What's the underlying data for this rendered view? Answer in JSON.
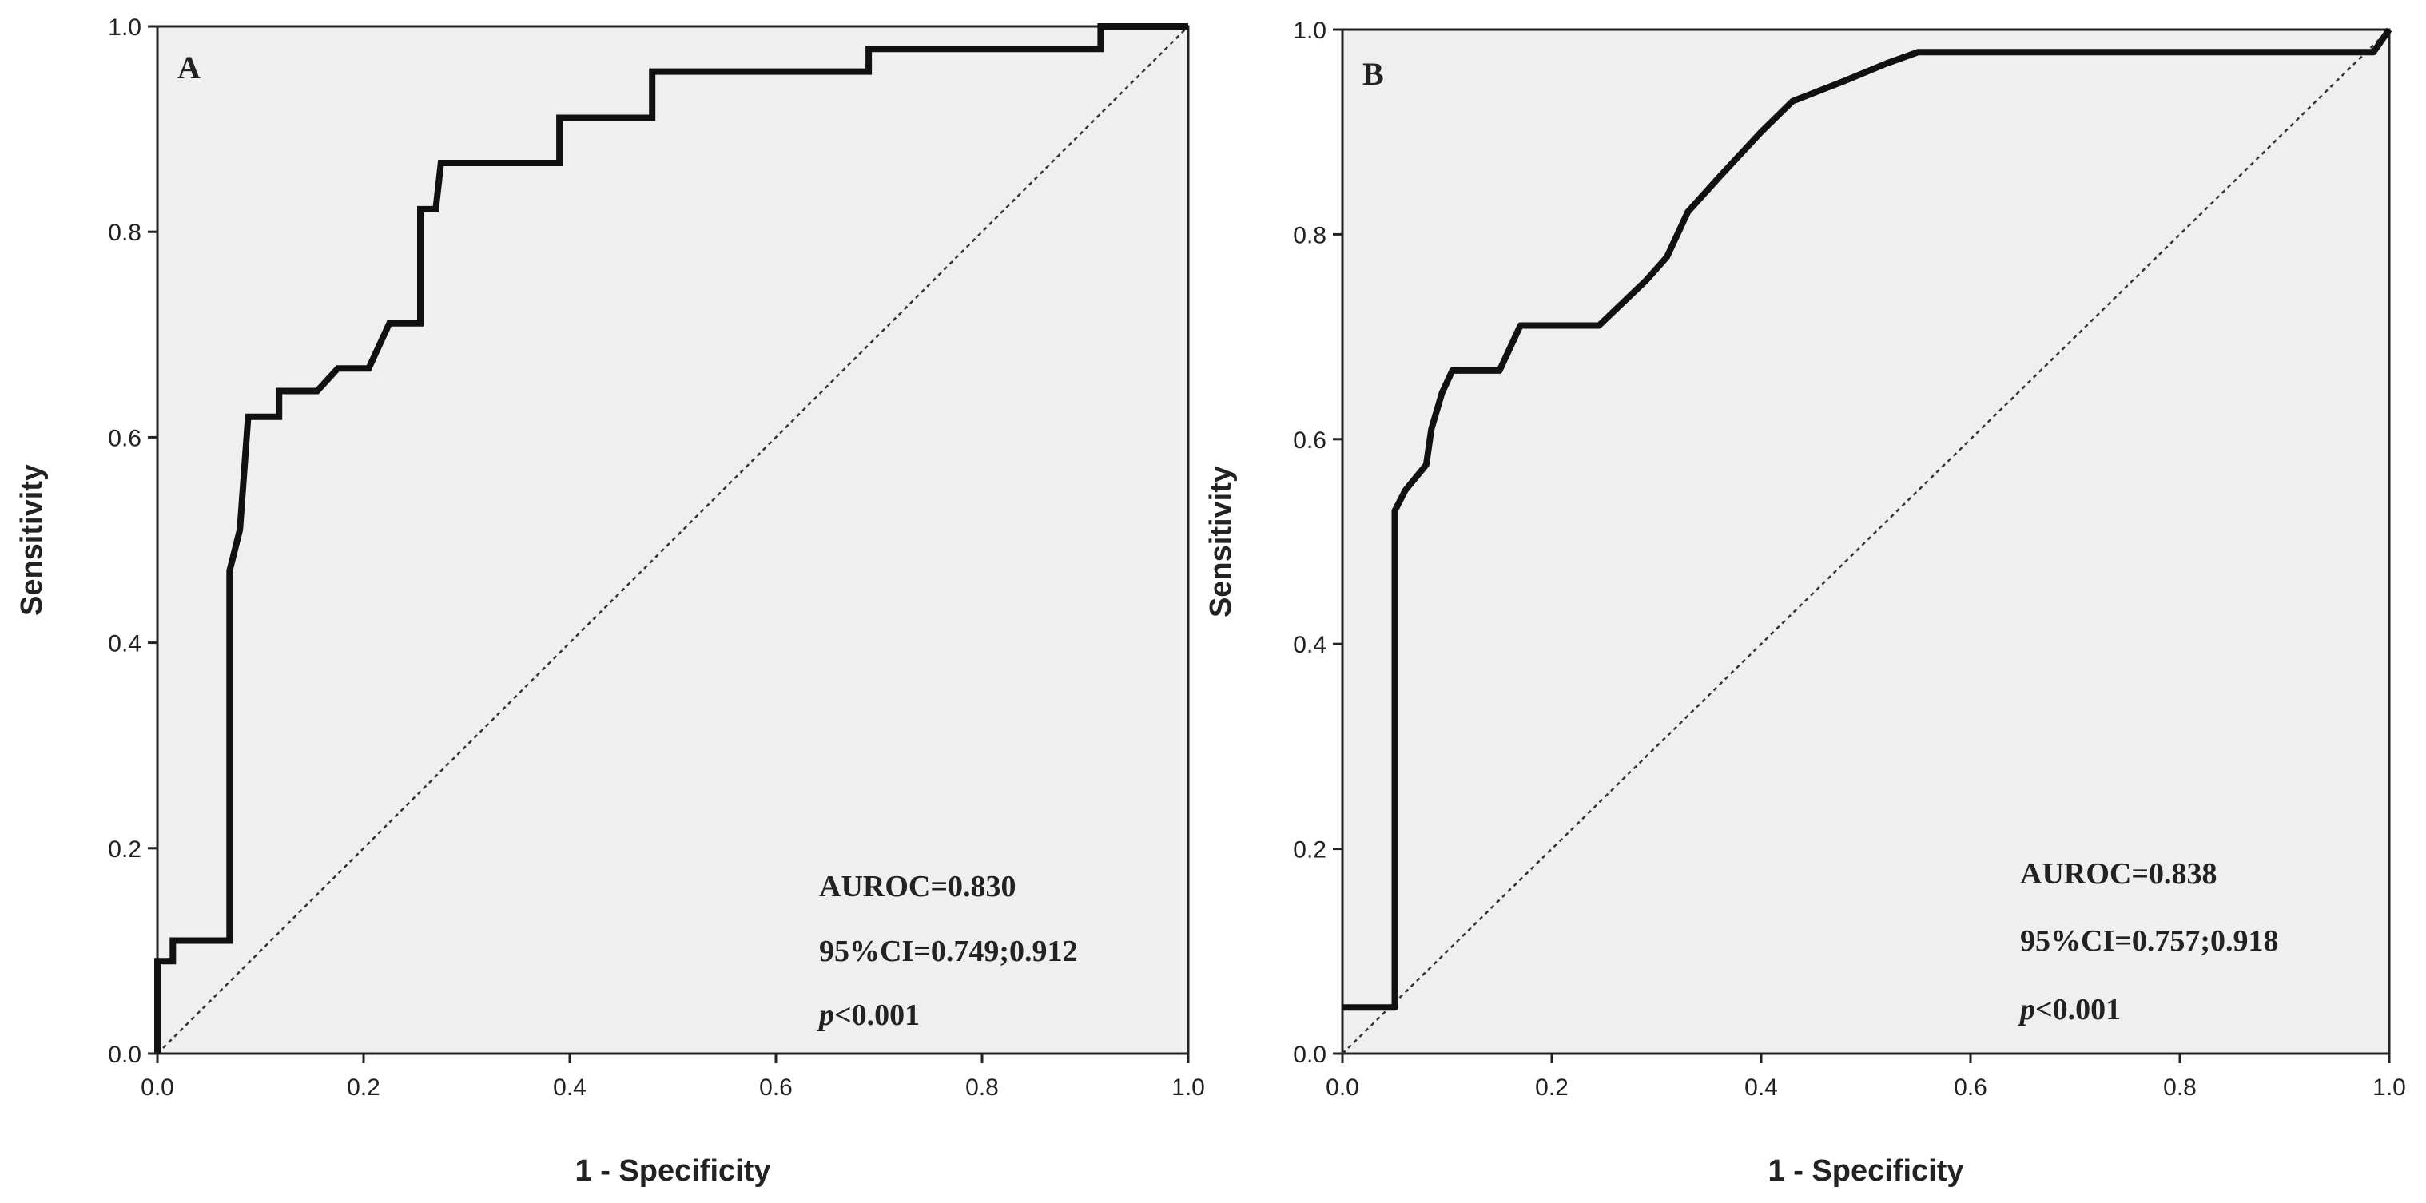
{
  "chart_data": [
    {
      "type": "line",
      "panel_label": "A",
      "xlabel": "1 - Specificity",
      "ylabel": "Sensitivity",
      "xlim": [
        0,
        1
      ],
      "ylim": [
        0,
        1
      ],
      "xticks": [
        "0.0",
        "0.2",
        "0.4",
        "0.6",
        "0.8",
        "1.0"
      ],
      "yticks": [
        "0.0",
        "0.2",
        "0.4",
        "0.6",
        "0.8",
        "1.0"
      ],
      "grid": false,
      "colors": {
        "plot_bg": "#efefef",
        "curve": "#111111",
        "reference": "#333333"
      },
      "series": [
        {
          "points": [
            [
              0,
              0
            ],
            [
              0,
              0.09
            ],
            [
              0.015,
              0.09
            ],
            [
              0.015,
              0.11
            ],
            [
              0.07,
              0.11
            ],
            [
              0.07,
              0.47
            ],
            [
              0.08,
              0.51
            ],
            [
              0.088,
              0.62
            ],
            [
              0.118,
              0.62
            ],
            [
              0.118,
              0.645
            ],
            [
              0.155,
              0.645
            ],
            [
              0.175,
              0.667
            ],
            [
              0.205,
              0.667
            ],
            [
              0.225,
              0.711
            ],
            [
              0.255,
              0.711
            ],
            [
              0.255,
              0.822
            ],
            [
              0.27,
              0.822
            ],
            [
              0.275,
              0.867
            ],
            [
              0.39,
              0.867
            ],
            [
              0.39,
              0.911
            ],
            [
              0.48,
              0.911
            ],
            [
              0.48,
              0.956
            ],
            [
              0.69,
              0.956
            ],
            [
              0.69,
              0.978
            ],
            [
              0.915,
              0.978
            ],
            [
              0.915,
              1.0
            ],
            [
              1.0,
              1.0
            ]
          ]
        },
        {
          "points": [
            [
              0,
              0
            ],
            [
              1,
              1
            ]
          ]
        }
      ],
      "annotations": {
        "auroc": "AUROC=0.830",
        "ci": "95%CI=0.749;0.912",
        "p_symbol": "p",
        "p_rest": "<0.001"
      }
    },
    {
      "type": "line",
      "panel_label": "B",
      "xlabel": "1 - Specificity",
      "ylabel": "Sensitivity",
      "xlim": [
        0,
        1
      ],
      "ylim": [
        0,
        1
      ],
      "xticks": [
        "0.0",
        "0.2",
        "0.4",
        "0.6",
        "0.8",
        "1.0"
      ],
      "yticks": [
        "0.0",
        "0.2",
        "0.4",
        "0.6",
        "0.8",
        "1.0"
      ],
      "grid": false,
      "colors": {
        "plot_bg": "#efefef",
        "curve": "#111111",
        "reference": "#333333"
      },
      "series": [
        {
          "points": [
            [
              0,
              0.045
            ],
            [
              0.05,
              0.045
            ],
            [
              0.05,
              0.53
            ],
            [
              0.06,
              0.55
            ],
            [
              0.08,
              0.575
            ],
            [
              0.085,
              0.61
            ],
            [
              0.095,
              0.645
            ],
            [
              0.105,
              0.667
            ],
            [
              0.15,
              0.667
            ],
            [
              0.17,
              0.711
            ],
            [
              0.245,
              0.711
            ],
            [
              0.29,
              0.755
            ],
            [
              0.31,
              0.778
            ],
            [
              0.33,
              0.822
            ],
            [
              0.36,
              0.856
            ],
            [
              0.4,
              0.9
            ],
            [
              0.43,
              0.93
            ],
            [
              0.48,
              0.95
            ],
            [
              0.52,
              0.967
            ],
            [
              0.55,
              0.978
            ],
            [
              0.985,
              0.978
            ],
            [
              1.0,
              1.0
            ]
          ]
        },
        {
          "points": [
            [
              0,
              0
            ],
            [
              1,
              1
            ]
          ]
        }
      ],
      "annotations": {
        "auroc": "AUROC=0.838",
        "ci": "95%CI=0.757;0.918",
        "p_symbol": "p",
        "p_rest": "<0.001"
      }
    }
  ]
}
